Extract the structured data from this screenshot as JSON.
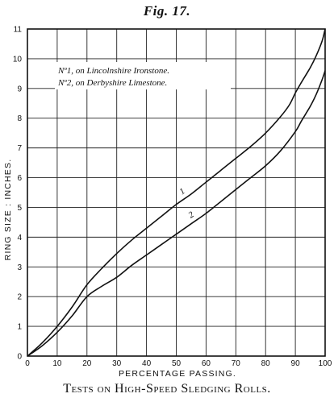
{
  "figure": {
    "title": "Fig. 17.",
    "caption": "Tests on High-Speed Sledging Rolls."
  },
  "chart_data": {
    "type": "line",
    "xlabel": "PERCENTAGE PASSING.",
    "ylabel": "RING SIZE : INCHES.",
    "xlim": [
      0,
      100
    ],
    "ylim": [
      0,
      11
    ],
    "xticks": [
      "0",
      "10",
      "20",
      "30",
      "40",
      "50",
      "60",
      "70",
      "80",
      "90",
      "100"
    ],
    "yticks": [
      "0",
      "1",
      "2",
      "3",
      "4",
      "5",
      "6",
      "7",
      "8",
      "9",
      "10",
      "11"
    ],
    "grid": true,
    "legend_position": "top-left",
    "legend": [
      "Nº1, on Lincolnshire Ironstone.",
      "Nº2, on Derbyshire Limestone."
    ],
    "series": [
      {
        "name": "1",
        "x": [
          0,
          5,
          10,
          15,
          20,
          25,
          30,
          35,
          40,
          45,
          50,
          55,
          60,
          65,
          70,
          75,
          80,
          85,
          88,
          90,
          92,
          95,
          97,
          99,
          100
        ],
        "y": [
          0,
          0.45,
          1.0,
          1.65,
          2.4,
          2.95,
          3.45,
          3.9,
          4.3,
          4.7,
          5.1,
          5.45,
          5.85,
          6.25,
          6.65,
          7.05,
          7.5,
          8.05,
          8.45,
          8.85,
          9.2,
          9.7,
          10.1,
          10.6,
          11.0
        ],
        "color": "#111111"
      },
      {
        "name": "2",
        "x": [
          0,
          5,
          10,
          15,
          20,
          25,
          30,
          35,
          40,
          45,
          50,
          55,
          60,
          65,
          70,
          75,
          80,
          85,
          90,
          92,
          95,
          97,
          99,
          100
        ],
        "y": [
          0,
          0.35,
          0.8,
          1.35,
          2.0,
          2.35,
          2.65,
          3.05,
          3.4,
          3.75,
          4.1,
          4.45,
          4.8,
          5.2,
          5.6,
          6.0,
          6.4,
          6.9,
          7.55,
          7.9,
          8.4,
          8.8,
          9.3,
          9.6
        ],
        "color": "#111111"
      }
    ]
  }
}
